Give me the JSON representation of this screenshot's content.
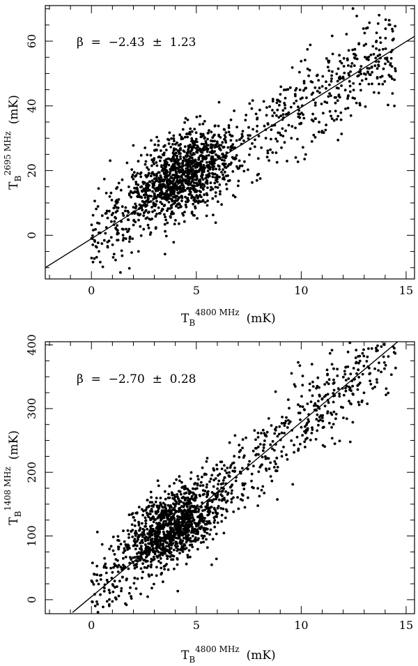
{
  "chart_data": [
    {
      "type": "scatter",
      "xlabel": {
        "main": "T",
        "sub": "B",
        "sup": "4800 MHz",
        "unit": "(mK)"
      },
      "ylabel": {
        "main": "T",
        "sub": "B",
        "sup": "2695 MHz",
        "unit": "(mK)"
      },
      "annotation": "β  =  −2.43  ±  1.23",
      "xlim": [
        -2.2,
        15.4
      ],
      "ylim": [
        -13.5,
        71
      ],
      "xticks": [
        0,
        5,
        10,
        15
      ],
      "yticks": [
        0,
        20,
        40,
        60
      ],
      "xtick_labels": [
        "0",
        "5",
        "10",
        "15"
      ],
      "ytick_labels": [
        "0",
        "20",
        "40",
        "60"
      ],
      "x_minor_step": 1,
      "y_minor_step": 5,
      "fit_line": [
        [
          -2.2,
          -10.0
        ],
        [
          15.4,
          61.5
        ]
      ],
      "point_count": 1700,
      "cluster": {
        "x_center": 4.3,
        "y_center": 19,
        "x_spread": 1.1,
        "y_spread": 6
      }
    },
    {
      "type": "scatter",
      "xlabel": {
        "main": "T",
        "sub": "B",
        "sup": "4800 MHz",
        "unit": "(mK)"
      },
      "ylabel": {
        "main": "T",
        "sub": "B",
        "sup": "1408 MHz",
        "unit": "(mK)"
      },
      "annotation": "β  =  −2.70  ±  0.28",
      "xlim": [
        -2.2,
        15.4
      ],
      "ylim": [
        -22,
        405
      ],
      "xticks": [
        0,
        5,
        10,
        15
      ],
      "yticks": [
        0,
        100,
        200,
        300,
        400
      ],
      "xtick_labels": [
        "0",
        "5",
        "10",
        "15"
      ],
      "ytick_labels": [
        "0",
        "100",
        "200",
        "300",
        "400"
      ],
      "x_minor_step": 1,
      "y_minor_step": 25,
      "fit_line": [
        [
          -0.9,
          -20.0
        ],
        [
          14.6,
          405.0
        ]
      ],
      "point_count": 1700,
      "cluster": {
        "x_center": 3.9,
        "y_center": 115,
        "x_spread": 1.1,
        "y_spread": 28
      }
    }
  ]
}
